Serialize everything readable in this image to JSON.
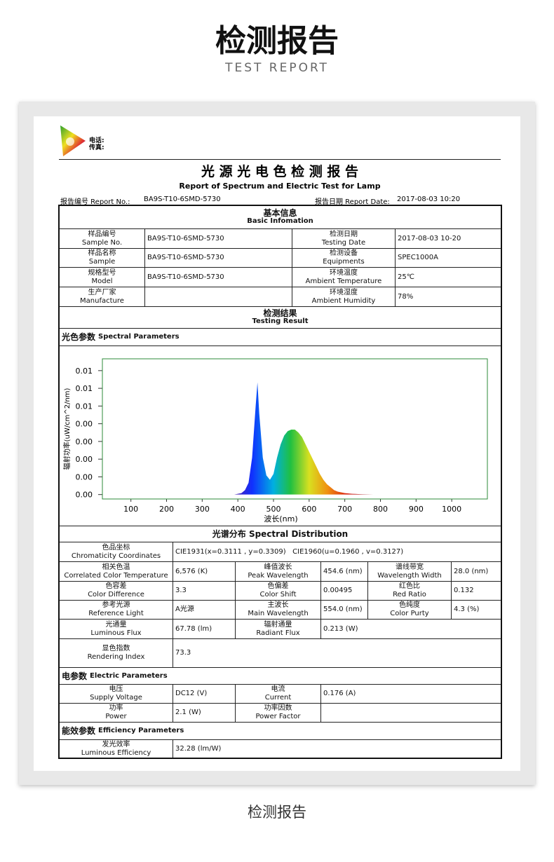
{
  "header": {
    "title": "检测报告",
    "subtitle": "TEST REPORT"
  },
  "report": {
    "contact": [
      "电话:",
      "传真:"
    ],
    "title": "光 源 光 电 色 检 测 报 告",
    "subtitle": "Report of Spectrum and Electric Test for Lamp",
    "report_no_label": "报告编号 Report No.:",
    "report_no": "BA9S-T10-6SMD-5730",
    "report_date_label": "报告日期 Report Date:",
    "report_date": "2017-08-03 10:20",
    "basic": {
      "title": "基本信息",
      "title_en": "Basic Infomation",
      "rows": [
        [
          {
            "cn": "样品编号",
            "en": "Sample No.",
            "value": "BA9S-T10-6SMD-5730"
          },
          {
            "cn": "检测日期",
            "en": "Testing Date",
            "value": "2017-08-03 10-20"
          }
        ],
        [
          {
            "cn": "样品名称",
            "en": "Sample",
            "value": "BA9S-T10-6SMD-5730"
          },
          {
            "cn": "检测设备",
            "en": "Equipments",
            "value": "SPEC1000A"
          }
        ],
        [
          {
            "cn": "规格型号",
            "en": "Model",
            "value": "BA9S-T10-6SMD-5730"
          },
          {
            "cn": "环境温度",
            "en": "Ambient Temperature",
            "value": "25℃"
          }
        ],
        [
          {
            "cn": "生产厂家",
            "en": "Manufacture"
          },
          {
            "cn": "环境湿度",
            "en": "Ambient Humidity",
            "value": "78%"
          }
        ]
      ]
    },
    "result": {
      "title": "检测结果",
      "title_en": "Testing Result"
    },
    "spectral": {
      "title": "光色参数",
      "title_en": "Spectral Parameters",
      "distribution_title": "光谱分布 Spectral Distribution",
      "rows": [
        [
          {
            "cn": "色品坐标",
            "en": "Chromaticity Coordinates",
            "value": "CIE1931(x=0.3111 , y=0.3309)   CIE1960(u=0.1960 , v=0.3127)"
          }
        ],
        [
          {
            "cn": "相关色温",
            "en": "Correlated Color Temperature",
            "value": "6,576 (K)"
          },
          {
            "cn": "峰值波长",
            "en": "Peak Wavelength",
            "value": "454.6 (nm)"
          },
          {
            "cn": "谱线带宽",
            "en": "Wavelength Width",
            "value": "28.0 (nm)"
          }
        ],
        [
          {
            "cn": "色容差",
            "en": "Color Difference",
            "value": "3.3"
          },
          {
            "cn": "色偏差",
            "en": "Color Shift",
            "value": "0.00495"
          },
          {
            "cn": "红色比",
            "en": "Red Ratio",
            "value": "0.132"
          }
        ],
        [
          {
            "cn": "参考光源",
            "en": "Reference Light",
            "value": "A光源"
          },
          {
            "cn": "主波长",
            "en": "Main Wavelength",
            "value": "554.0 (nm)"
          },
          {
            "cn": "色纯度",
            "en": "Color Purty",
            "value": "4.3 (%)"
          }
        ],
        [
          {
            "cn": "光通量",
            "en": "Luminous Flux",
            "value": "67.78 (lm)"
          },
          {
            "cn": "辐射通量",
            "en": "Radiant Flux",
            "value": "0.213 (W)"
          }
        ],
        [
          {
            "cn": "显色指数",
            "en": "Rendering Index",
            "value": "73.3"
          }
        ]
      ]
    },
    "electric": {
      "title": "电参数",
      "title_en": "Electric Parameters",
      "rows": [
        [
          {
            "cn": "电压",
            "en": "Supply Voltage",
            "value": "DC12 (V)"
          },
          {
            "cn": "电流",
            "en": "Current",
            "value": "0.176 (A)"
          }
        ],
        [
          {
            "cn": "功率",
            "en": "Power",
            "value": "2.1 (W)"
          },
          {
            "cn": "功率因数",
            "en": "Power Factor"
          }
        ]
      ]
    },
    "efficiency": {
      "title": "能效参数",
      "title_en": "Efficiency Parameters",
      "rows": [
        [
          {
            "cn": "发光效率",
            "en": "Luminous Efficiency",
            "value": "32.28 (lm/W)"
          }
        ]
      ]
    }
  },
  "chart_data": {
    "type": "area",
    "xlabel": "波长(nm)",
    "ylabel": "辐射功率(uW/cm^2/nm)",
    "x": [
      380,
      390,
      400,
      410,
      420,
      430,
      440,
      450,
      455,
      460,
      470,
      480,
      490,
      500,
      510,
      520,
      530,
      540,
      550,
      560,
      570,
      580,
      590,
      600,
      610,
      620,
      630,
      640,
      650,
      660,
      670,
      680,
      700,
      720,
      750,
      780
    ],
    "values": [
      0,
      0,
      5e-05,
      0.0001,
      0.0003,
      0.0008,
      0.0025,
      0.006,
      0.0076,
      0.0055,
      0.0025,
      0.0013,
      0.001,
      0.0014,
      0.0025,
      0.0034,
      0.004,
      0.0043,
      0.0044,
      0.0044,
      0.0042,
      0.0039,
      0.0034,
      0.0029,
      0.0024,
      0.0019,
      0.0014,
      0.001,
      0.0007,
      0.0005,
      0.0003,
      0.0002,
      0.0001,
      5e-05,
      2e-05,
      0
    ],
    "xlim": [
      20,
      1100
    ],
    "xticks": [
      100,
      200,
      300,
      400,
      500,
      600,
      700,
      800,
      900,
      1000
    ],
    "ylim": [
      -0.0003,
      0.0092
    ],
    "yticks": [
      {
        "value": 0,
        "label": "0.00"
      },
      {
        "value": 0.0012,
        "label": "0.00"
      },
      {
        "value": 0.0024,
        "label": "0.00"
      },
      {
        "value": 0.0036,
        "label": "0.00"
      },
      {
        "value": 0.0048,
        "label": "0.00"
      },
      {
        "value": 0.006,
        "label": "0.01"
      },
      {
        "value": 0.0072,
        "label": "0.01"
      },
      {
        "value": 0.0084,
        "label": "0.01"
      }
    ],
    "frame_color": "#2e8b3a",
    "grid": false
  },
  "footer": {
    "caption": "检测报告"
  }
}
